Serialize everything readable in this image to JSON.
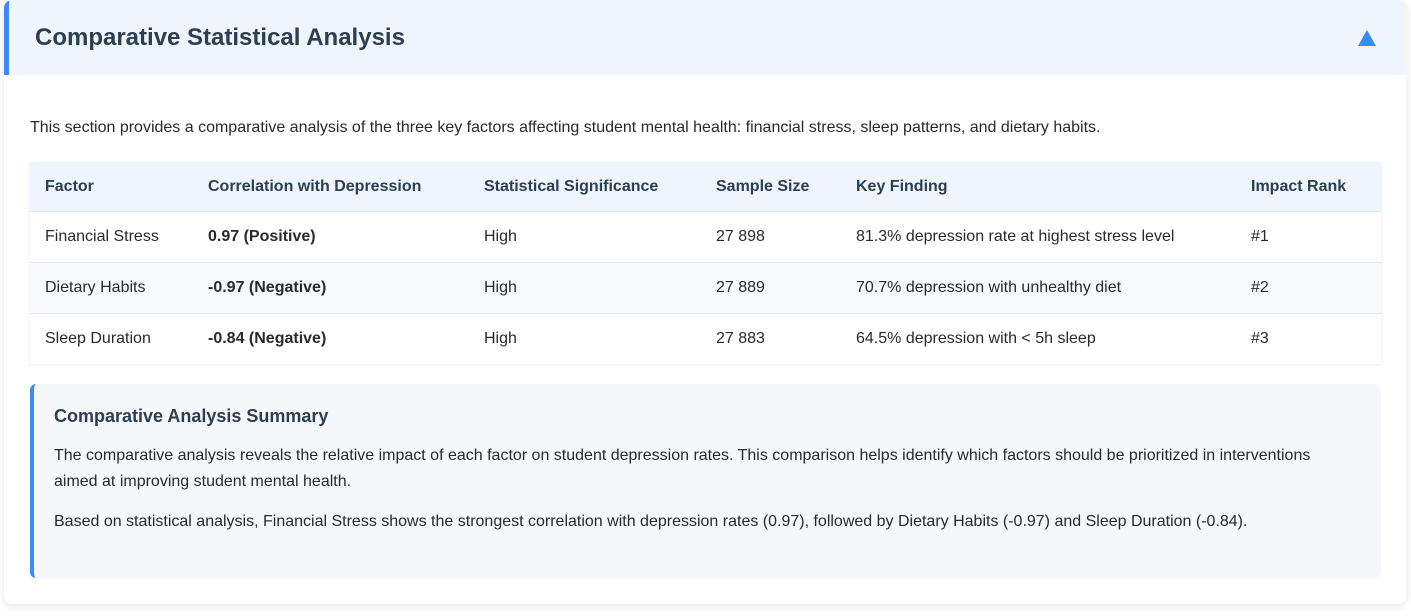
{
  "section": {
    "title": "Comparative Statistical Analysis",
    "toggle_icon": "triangle-up-icon",
    "accent_color": "#3d8af7"
  },
  "intro": "This section provides a comparative analysis of the three key factors affecting student mental health: financial stress, sleep patterns, and dietary habits.",
  "table": {
    "headers": [
      "Factor",
      "Correlation with Depression",
      "Statistical Significance",
      "Sample Size",
      "Key Finding",
      "Impact Rank"
    ],
    "rows": [
      [
        "Financial Stress",
        "0.97 (Positive)",
        "High",
        "27 898",
        "81.3% depression rate at highest stress level",
        "#1"
      ],
      [
        "Dietary Habits",
        "-0.97 (Negative)",
        "High",
        "27 889",
        "70.7% depression with unhealthy diet",
        "#2"
      ],
      [
        "Sleep Duration",
        "-0.84 (Negative)",
        "High",
        "27 883",
        "64.5% depression with < 5h sleep",
        "#3"
      ]
    ],
    "correlation_color": "#e0392b"
  },
  "summary": {
    "title": "Comparative Analysis Summary",
    "paragraph1": "The comparative analysis reveals the relative impact of each factor on student depression rates. This comparison helps identify which factors should be prioritized in interventions aimed at improving student mental health.",
    "paragraph2": "Based on statistical analysis, Financial Stress shows the strongest correlation with depression rates (0.97), followed by Dietary Habits (-0.97) and Sleep Duration (-0.84)."
  }
}
